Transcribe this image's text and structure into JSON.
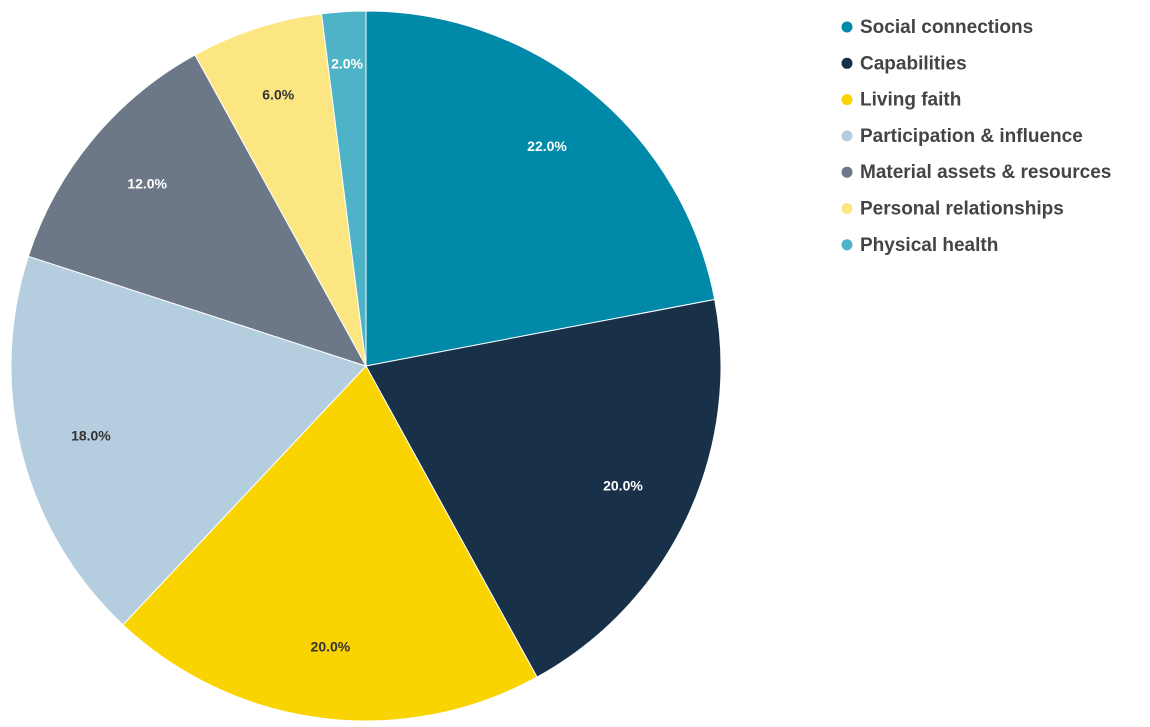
{
  "chart_data": {
    "type": "pie",
    "categories": [
      "Social connections",
      "Capabilities",
      "Living faith",
      "Participation & influence",
      "Material assets & resources",
      "Personal relationships",
      "Physical health"
    ],
    "values": [
      22,
      20,
      20,
      18,
      12,
      6,
      2
    ],
    "value_labels": [
      "22.0%",
      "20.0%",
      "20.0%",
      "18.0%",
      "12.0%",
      "6.0%",
      "2.0%"
    ],
    "colors": [
      "#0089a8",
      "#183149",
      "#fad400",
      "#b5cedf",
      "#6c7888",
      "#fbe682",
      "#4fb3c8"
    ],
    "legend": "top-right"
  }
}
